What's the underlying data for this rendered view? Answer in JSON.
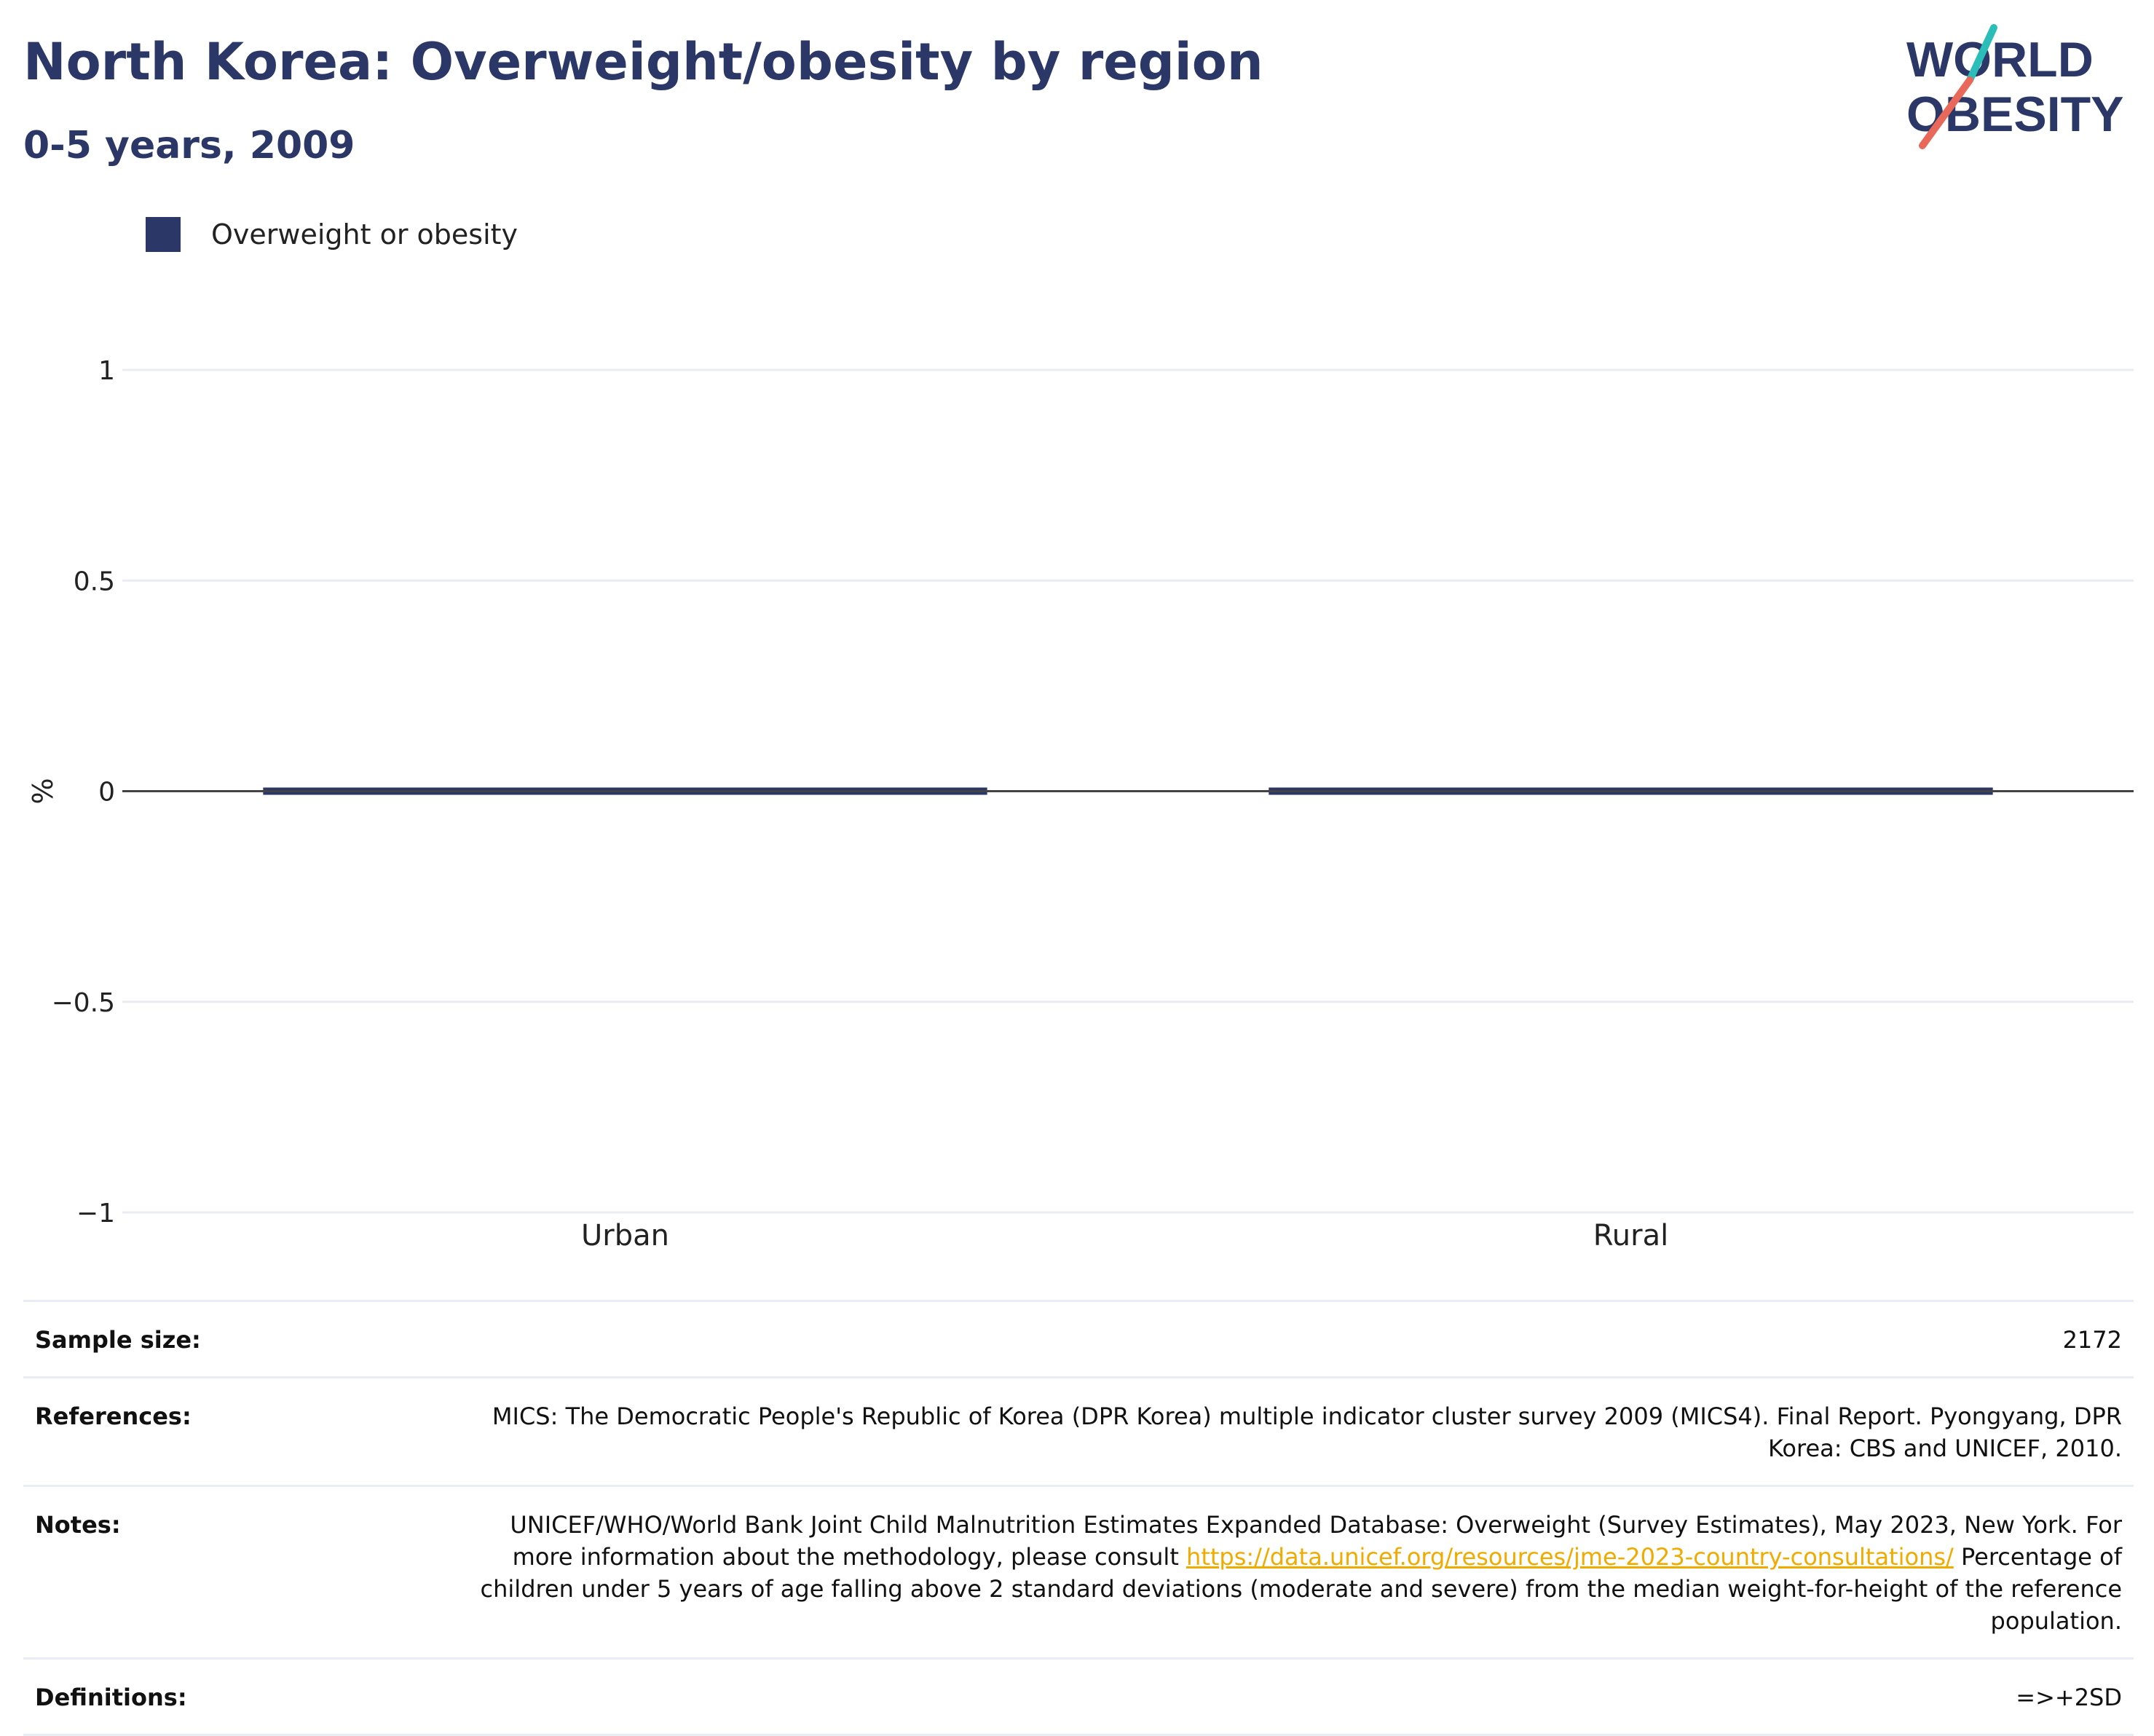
{
  "header": {
    "title": "North Korea: Overweight/obesity by region",
    "subtitle": "0-5 years, 2009"
  },
  "logo": {
    "line1": "WORLD",
    "line2": "OBESITY",
    "colors": {
      "text": "#2b3767",
      "slash_top": "#2bbdb7",
      "slash_bottom": "#e8685a"
    }
  },
  "colors": {
    "series": "#2b3767",
    "zero_line": "#444444",
    "grid": "#e9ecf3"
  },
  "chart_data": {
    "type": "bar",
    "categories": [
      "Urban",
      "Rural"
    ],
    "series": [
      {
        "name": "Overweight or obesity",
        "values": [
          0,
          0
        ]
      }
    ],
    "ylabel": "%",
    "ylim": [
      -1,
      1
    ],
    "yticks": [
      1,
      0.5,
      0,
      -0.5,
      -1
    ],
    "ytick_labels": [
      "1",
      "0.5",
      "0",
      "−0.5",
      "−1"
    ],
    "grid": true,
    "legend": "top-left"
  },
  "info": {
    "sample_size_label": "Sample size:",
    "sample_size_value": "2172",
    "references_label": "References:",
    "references_value": "MICS: The Democratic People's Republic of Korea (DPR Korea) multiple indicator cluster survey 2009 (MICS4). Final Report. Pyongyang, DPR Korea: CBS and UNICEF, 2010.",
    "notes_label": "Notes:",
    "notes_text_1": "UNICEF/WHO/World Bank Joint Child Malnutrition Estimates Expanded Database: Overweight (Survey Estimates), May 2023, New York. For more information about the methodology, please consult",
    "notes_link": "https://data.unicef.org/resources/jme-2023-country-consultations/",
    "notes_text_2": "Percentage of children under 5 years of age falling above 2 standard deviations (moderate and severe) from the median weight-for-height of the reference population.",
    "definitions_label": "Definitions:",
    "definitions_value": "=>+2SD"
  }
}
